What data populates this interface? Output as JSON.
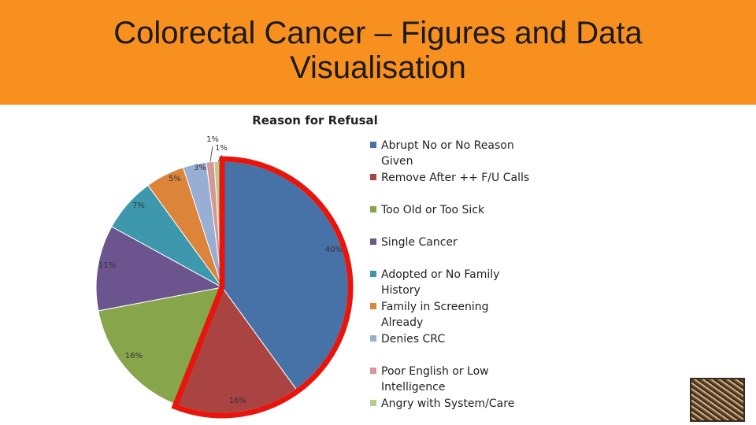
{
  "slide": {
    "title": "Colorectal Cancer – Figures and Data\nVisualisation"
  },
  "colors": {
    "header_bg": "#f7901e",
    "highlight_border": "#e8150d"
  },
  "chart_data": {
    "type": "pie",
    "title": "Reason for Refusal",
    "legend_position": "right",
    "slices": [
      {
        "name": "Abrupt No or No Reason Given",
        "value": 40,
        "label": "40%",
        "color": "#4672a8"
      },
      {
        "name": "Remove After ++ F/U Calls",
        "value": 16,
        "label": "16%",
        "color": "#a94442"
      },
      {
        "name": "Too Old or Too Sick",
        "value": 16,
        "label": "16%",
        "color": "#87a54b"
      },
      {
        "name": "Single Cancer",
        "value": 11,
        "label": "11%",
        "color": "#6c558f"
      },
      {
        "name": "Adopted or No Family History",
        "value": 7,
        "label": "7%",
        "color": "#3d98ad"
      },
      {
        "name": "Family in Screening Already",
        "value": 5,
        "label": "5%",
        "color": "#dc843a"
      },
      {
        "name": "Denies CRC",
        "value": 3,
        "label": "3%",
        "color": "#98aed3"
      },
      {
        "name": "Poor English or Low Intelligence",
        "value": 1,
        "label": "1%",
        "color": "#d39996"
      },
      {
        "name": "Angry with System/Care",
        "value": 1,
        "label": "1%",
        "color": "#b7cc8e"
      }
    ],
    "highlighted_slices": [
      "Abrupt No or No Reason Given",
      "Remove After ++ F/U Calls"
    ]
  },
  "legend_labels": {
    "0": "Abrupt No or No Reason Given",
    "1": "Remove After ++ F/U Calls",
    "2": "Too Old or Too Sick",
    "3": "Single Cancer",
    "4": "Adopted or No Family History",
    "5": "Family in Screening Already",
    "6": "Denies CRC",
    "7": "Poor English or Low Intelligence",
    "8": "Angry with System/Care"
  }
}
